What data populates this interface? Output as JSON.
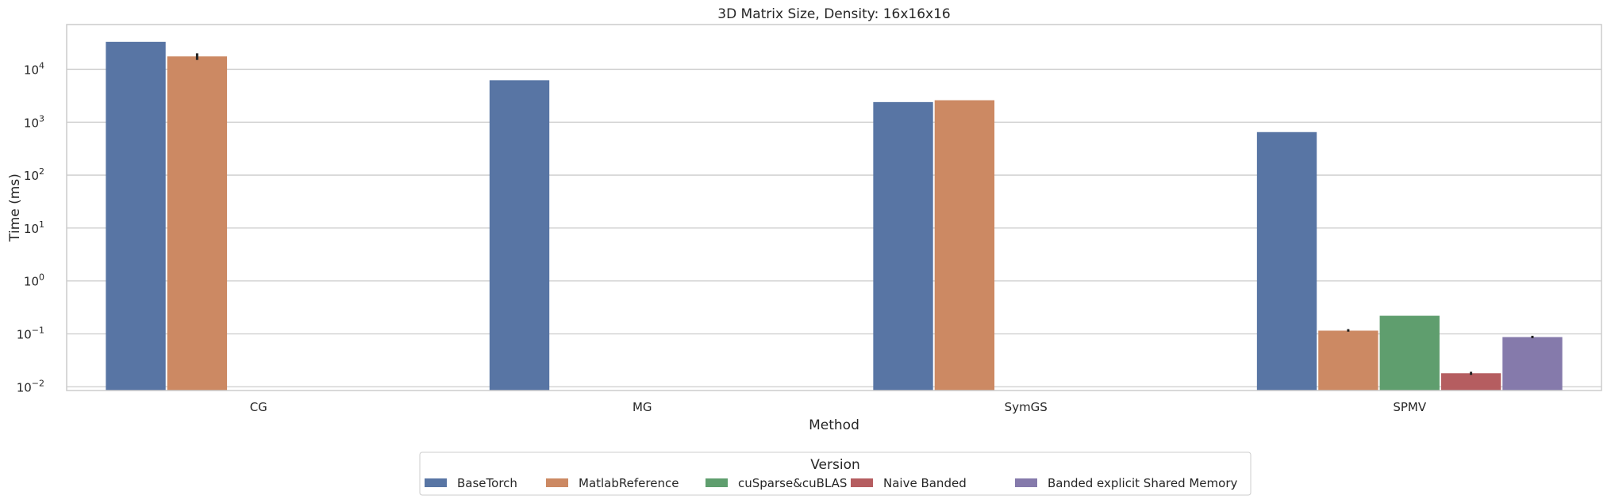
{
  "chart_data": {
    "type": "bar",
    "title": "3D Matrix Size, Density: 16x16x16",
    "xlabel": "Method",
    "ylabel": "Time (ms)",
    "yscale": "log",
    "ylim": [
      0.0085,
      70000
    ],
    "ytick_values": [
      0.01,
      0.1,
      1,
      10,
      100,
      1000,
      10000
    ],
    "ytick_labels": [
      [
        "10",
        "−2"
      ],
      [
        "10",
        "−1"
      ],
      [
        "10",
        "0"
      ],
      [
        "10",
        "1"
      ],
      [
        "10",
        "2"
      ],
      [
        "10",
        "3"
      ],
      [
        "10",
        "4"
      ]
    ],
    "grid": "horizontal",
    "categories": [
      "CG",
      "MG",
      "SymGS",
      "SPMV"
    ],
    "legend": {
      "title": "Version",
      "placement": "bottom-center, below plot"
    },
    "series": [
      {
        "name": "BaseTorch",
        "color": "#5875a4",
        "values": [
          33000,
          6200,
          2400,
          650
        ],
        "errors": [
          null,
          null,
          null,
          null
        ]
      },
      {
        "name": "MatlabReference",
        "color": "#cc8963",
        "values": [
          17500,
          null,
          2600,
          0.115
        ],
        "errors": [
          [
            15000,
            20000
          ],
          null,
          null,
          [
            0.11,
            0.123
          ]
        ]
      },
      {
        "name": "cuSparse&cuBLAS",
        "color": "#5f9e6e",
        "values": [
          null,
          null,
          null,
          0.22
        ],
        "errors": [
          null,
          null,
          null,
          null
        ]
      },
      {
        "name": "Naive Banded",
        "color": "#b55d60",
        "values": [
          null,
          null,
          null,
          0.018
        ],
        "errors": [
          null,
          null,
          null,
          [
            0.0168,
            0.0192
          ]
        ]
      },
      {
        "name": "Banded explicit Shared Memory",
        "color": "#857aab",
        "values": [
          null,
          null,
          null,
          0.087
        ],
        "errors": [
          null,
          null,
          null,
          [
            0.083,
            0.092
          ]
        ]
      }
    ]
  }
}
